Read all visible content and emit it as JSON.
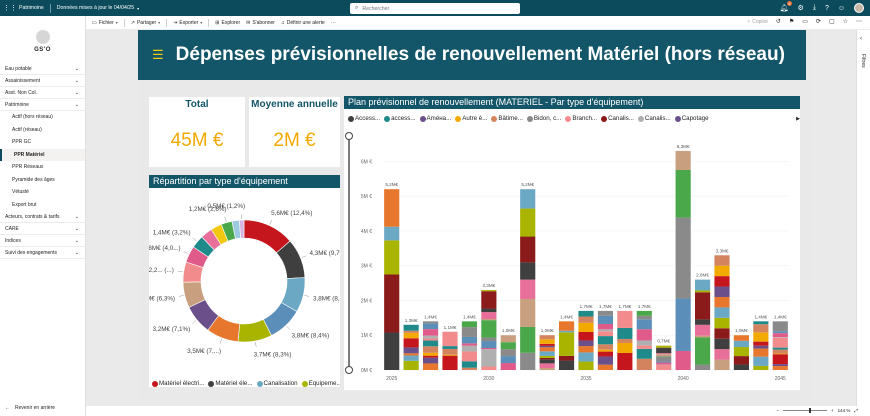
{
  "topbar": {
    "workspace": "Patrimoine",
    "dataset": "Données mises à jour le 04/04/25",
    "search_placeholder": "Rechercher",
    "notif_count": "6"
  },
  "sidebar": {
    "logo_text": "GS'O",
    "items": [
      {
        "label": "Eau potable",
        "type": "parent"
      },
      {
        "label": "Assainissement",
        "type": "parent"
      },
      {
        "label": "Asst. Non Col.",
        "type": "parent"
      },
      {
        "label": "Patrimoine",
        "type": "parent"
      },
      {
        "label": "Actif (hors réseau)",
        "type": "sub"
      },
      {
        "label": "Actif (réseau)",
        "type": "sub"
      },
      {
        "label": "PPR GC",
        "type": "sub"
      },
      {
        "label": "PPR Matériel",
        "type": "sub",
        "active": true
      },
      {
        "label": "PPR Réseaux",
        "type": "sub"
      },
      {
        "label": "Pyramide des âges",
        "type": "sub"
      },
      {
        "label": "Vétusté",
        "type": "sub"
      },
      {
        "label": "Export brut",
        "type": "sub"
      },
      {
        "label": "Acteurs, contrats & tarifs",
        "type": "parent"
      },
      {
        "label": "CARE",
        "type": "parent"
      },
      {
        "label": "Indices",
        "type": "parent"
      },
      {
        "label": "Suivi des engagements",
        "type": "parent"
      }
    ],
    "back_label": "Revenir en arrière"
  },
  "toolbar": {
    "fichier": "Fichier",
    "partager": "Partager",
    "exporter": "Exporter",
    "explorer": "Explorer",
    "abonner": "S'abonner",
    "alerte": "Définir une alerte",
    "more": "···",
    "copilot": "Copilot"
  },
  "filters_label": "Filtres",
  "zoom_label": "144 %",
  "report": {
    "title": "Dépenses prévisionnelles de renouvellement Matériel (hors réseau)",
    "kpi_total_label": "Total",
    "kpi_total_value": "45M €",
    "kpi_avg_label": "Moyenne annuelle",
    "kpi_avg_value": "2M €",
    "donut_title": "Répartition par type d'équipement",
    "donut_legend": [
      {
        "name": "Matériel électri...",
        "color": "#c4161c"
      },
      {
        "name": "Matériel éle...",
        "color": "#3f3f3f"
      },
      {
        "name": "Canalisation",
        "color": "#6ba8c4"
      },
      {
        "name": "Equipeme...",
        "color": "#a8b400"
      }
    ],
    "bar_title": "Plan prévisionnel de renouvellement (MATERIEL - Par type d'équipement)",
    "bar_legend": [
      {
        "name": "Access...",
        "color": "#3f3f3f"
      },
      {
        "name": "access...",
        "color": "#1f8a8a"
      },
      {
        "name": "Améна...",
        "color": "#6b4f8a"
      },
      {
        "name": "Autre é...",
        "color": "#f2a900"
      },
      {
        "name": "Bâtime...",
        "color": "#d3845e"
      },
      {
        "name": "Bidon, c...",
        "color": "#8a8a8a"
      },
      {
        "name": "Branch...",
        "color": "#f28b8b"
      },
      {
        "name": "Canalis...",
        "color": "#8b1a1a"
      },
      {
        "name": "Canalis...",
        "color": "#b0b0b0"
      },
      {
        "name": "Capotage",
        "color": "#6b4f8a"
      }
    ]
  },
  "chart_data": [
    {
      "type": "pie",
      "title": "Répartition par type d'équipement",
      "slices": [
        {
          "label": "5,6M€ (12,4%)",
          "value": 5.6,
          "color": "#c4161c"
        },
        {
          "label": "4,3M€ (9,7%)",
          "value": 4.3,
          "color": "#3f3f3f"
        },
        {
          "label": "3,8M€ (8,5%)",
          "value": 3.8,
          "color": "#6ba8c4"
        },
        {
          "label": "3,8M€ (8,4%)",
          "value": 3.8,
          "color": "#5b8fb9"
        },
        {
          "label": "3,7M€ (8,3%)",
          "value": 3.7,
          "color": "#a8b400"
        },
        {
          "label": "3,5M€ (7,...)",
          "value": 3.5,
          "color": "#e8772e"
        },
        {
          "label": "3,2M€ (7,1%)",
          "value": 3.2,
          "color": "#6b4f8a"
        },
        {
          "label": "2,8M€ (6,3%)",
          "value": 2.8,
          "color": "#c8a080"
        },
        {
          "label": "2,2... (...)",
          "value": 2.2,
          "color": "#f28b8b"
        },
        {
          "label": "1,8M€ (4,0...)",
          "value": 1.8,
          "color": "#e05a8a"
        },
        {
          "label": "1,4M€ (3,2%)",
          "value": 1.4,
          "color": "#1f8a8a"
        },
        {
          "label": "",
          "value": 1.3,
          "color": "#e86f9a"
        },
        {
          "label": "",
          "value": 1.2,
          "color": "#f2c811"
        },
        {
          "label": "1,2M€ (2,6%)",
          "value": 1.2,
          "color": "#4aa84a"
        },
        {
          "label": "",
          "value": 0.8,
          "color": "#9ecae1"
        },
        {
          "label": "0,5M€ (1,2%)",
          "value": 0.5,
          "color": "#d6b3e0"
        }
      ]
    },
    {
      "type": "bar",
      "stacked": true,
      "title": "Plan prévisionnel de renouvellement (MATERIEL - Par type d'équipement)",
      "x": [
        2025,
        2026,
        2027,
        2028,
        2029,
        2030,
        2031,
        2032,
        2033,
        2034,
        2035,
        2036,
        2037,
        2038,
        2039,
        2040,
        2041,
        2042,
        2043,
        2044,
        2045
      ],
      "totals": [
        5.2,
        1.3,
        1.4,
        1.1,
        1.4,
        2.3,
        1.0,
        5.2,
        1.0,
        1.4,
        1.7,
        1.7,
        1.7,
        1.7,
        0.7,
        6.3,
        2.6,
        3.3,
        1.0,
        1.4,
        1.4
      ],
      "total_labels": [
        "5,2M€",
        "1,3M€",
        "1,4M€",
        "1,1M€",
        "1,4M€",
        "2,3M€",
        "1,0M€",
        "5,2M€",
        "1,0M€",
        "1,4M€",
        "1,7M€",
        "1,7M€",
        "1,7M€",
        "1,7M€",
        "0,7M€",
        "6,3M€",
        "2,6M€",
        "3,3M€",
        "1,0M€",
        "1,4M€",
        "1,4M€"
      ],
      "y_ticks": [
        "0M €",
        "1M €",
        "2M €",
        "3M €",
        "4M €",
        "5M €",
        "6M €"
      ],
      "x_ticks": [
        "2025",
        "2030",
        "2035",
        "2040",
        "2045"
      ],
      "ylim": [
        0,
        6.5
      ]
    }
  ]
}
